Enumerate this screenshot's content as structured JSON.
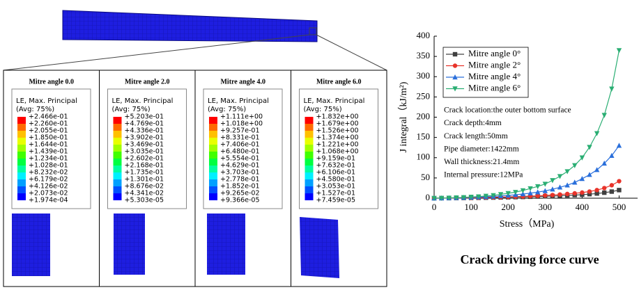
{
  "panels": [
    {
      "title": "Mitre angle 0.0",
      "legend_title": "LE, Max. Principal",
      "legend_avg": "(Avg: 75%)",
      "labels": [
        "+2.466e-01",
        "+2.260e-01",
        "+2.055e-01",
        "+1.850e-01",
        "+1.644e-01",
        "+1.439e-01",
        "+1.234e-01",
        "+1.028e-01",
        "+8.232e-02",
        "+6.179e-02",
        "+4.126e-02",
        "+2.073e-02",
        "+1.974e-04"
      ]
    },
    {
      "title": "Mitre angle 2.0",
      "legend_title": "LE, Max. Principal",
      "legend_avg": "(Avg: 75%)",
      "labels": [
        "+5.203e-01",
        "+4.769e-01",
        "+4.336e-01",
        "+3.902e-01",
        "+3.469e-01",
        "+3.035e-01",
        "+2.602e-01",
        "+2.168e-01",
        "+1.735e-01",
        "+1.301e-01",
        "+8.676e-02",
        "+4.341e-02",
        "+5.303e-05"
      ]
    },
    {
      "title": "Mitre angle 4.0",
      "legend_title": "LE, Max. Principal",
      "legend_avg": "(Avg: 75%)",
      "labels": [
        "+1.111e+00",
        "+1.018e+00",
        "+9.257e-01",
        "+8.331e-01",
        "+7.406e-01",
        "+6.480e-01",
        "+5.554e-01",
        "+4.629e-01",
        "+3.703e-01",
        "+2.778e-01",
        "+1.852e-01",
        "+9.265e-02",
        "+9.366e-05"
      ]
    },
    {
      "title": "Mitre angle 6.0",
      "legend_title": "LE, Max. Principal",
      "legend_avg": "(Avg: 75%)",
      "labels": [
        "+1.832e+00",
        "+1.679e+00",
        "+1.526e+00",
        "+1.374e+00",
        "+1.221e+00",
        "+1.068e+00",
        "+9.159e-01",
        "+7.632e-01",
        "+6.106e-01",
        "+4.580e-01",
        "+3.053e-01",
        "+1.527e-01",
        "+7.459e-05"
      ]
    }
  ],
  "chart_data": {
    "type": "line",
    "caption": "Crack driving force curve",
    "x_label": "Stress（MPa)",
    "y_label": "J integral（kJ/m²)",
    "x": [
      0,
      20,
      40,
      60,
      80,
      100,
      120,
      140,
      160,
      180,
      200,
      220,
      240,
      260,
      280,
      300,
      320,
      340,
      360,
      380,
      400,
      420,
      440,
      460,
      480,
      500
    ],
    "series": [
      {
        "name": "Mitre angle 0°",
        "color": "#404040",
        "marker": "square",
        "values": [
          0,
          0.1,
          0.2,
          0.4,
          0.6,
          0.8,
          1,
          1.3,
          1.6,
          1.9,
          2.3,
          2.7,
          3.1,
          3.6,
          4.1,
          4.7,
          5.3,
          6,
          6.8,
          7.7,
          8.7,
          10,
          11.6,
          13.6,
          16.3,
          20
        ]
      },
      {
        "name": "Mitre angle 2°",
        "color": "#e8332a",
        "marker": "circle",
        "values": [
          0,
          0.1,
          0.3,
          0.5,
          0.8,
          1.1,
          1.4,
          1.8,
          2.2,
          2.7,
          3.2,
          3.8,
          4.4,
          5.1,
          5.9,
          6.8,
          7.9,
          9.1,
          10.5,
          12.1,
          14,
          16.5,
          20,
          25,
          32,
          42
        ]
      },
      {
        "name": "Mitre angle 4°",
        "color": "#2a6fdb",
        "marker": "triangle-up",
        "values": [
          0,
          0.2,
          0.5,
          0.9,
          1.4,
          2,
          2.6,
          3.4,
          4.3,
          5.5,
          7,
          8.5,
          10.3,
          12.5,
          15,
          18,
          22,
          27,
          32,
          39,
          48,
          58,
          70,
          86,
          105,
          130
        ]
      },
      {
        "name": "Mitre angle 6°",
        "color": "#2aae73",
        "marker": "triangle-down",
        "values": [
          0,
          0.3,
          0.8,
          1.3,
          2,
          3,
          4,
          5.5,
          7,
          9.5,
          12,
          15,
          19,
          24,
          29,
          35,
          44,
          54,
          66,
          81,
          100,
          126,
          160,
          205,
          270,
          365
        ]
      }
    ],
    "xlim": [
      0,
      550
    ],
    "xticks": [
      0,
      100,
      200,
      300,
      400,
      500
    ],
    "ylim": [
      0,
      400
    ],
    "yticks": [
      0,
      50,
      100,
      150,
      200,
      250,
      300,
      350,
      400
    ],
    "annotations": [
      "Crack location:the outer bottom surface",
      "Crack depth:4mm",
      "Crack length:50mm",
      "Pipe diameter:1422mm",
      "Wall thickness:21.4mm",
      "Internal pressure:12MPa"
    ]
  }
}
